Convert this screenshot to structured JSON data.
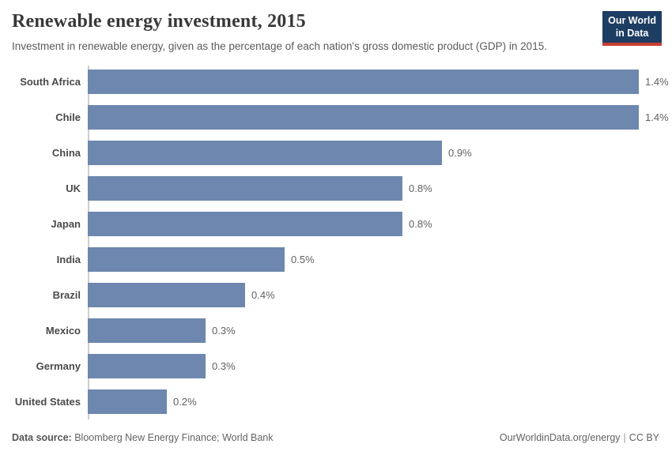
{
  "header": {
    "title": "Renewable energy investment, 2015",
    "subtitle": "Investment in renewable energy, given as the percentage of each nation's gross domestic product (GDP) in 2015.",
    "logo": {
      "line1": "Our World",
      "line2": "in Data",
      "bg_color": "#1d3d63",
      "stripe_color": "#c63d31"
    }
  },
  "chart_data": {
    "type": "bar",
    "orientation": "horizontal",
    "title": "Renewable energy investment, 2015",
    "xlabel": "",
    "ylabel": "",
    "unit": "%",
    "xlim": [
      0,
      1.4
    ],
    "grid": false,
    "legend": false,
    "bar_color": "#6d87ae",
    "categories": [
      "South Africa",
      "Chile",
      "China",
      "UK",
      "Japan",
      "India",
      "Brazil",
      "Mexico",
      "Germany",
      "United States"
    ],
    "values": [
      1.4,
      1.4,
      0.9,
      0.8,
      0.8,
      0.5,
      0.4,
      0.3,
      0.3,
      0.2
    ],
    "value_labels": [
      "1.4%",
      "1.4%",
      "0.9%",
      "0.8%",
      "0.8%",
      "0.5%",
      "0.4%",
      "0.3%",
      "0.3%",
      "0.2%"
    ]
  },
  "footer": {
    "source_label": "Data source:",
    "source_text": " Bloomberg New Energy Finance; World Bank",
    "site": "OurWorldinData.org/energy",
    "separator": "|",
    "license": "CC BY"
  }
}
